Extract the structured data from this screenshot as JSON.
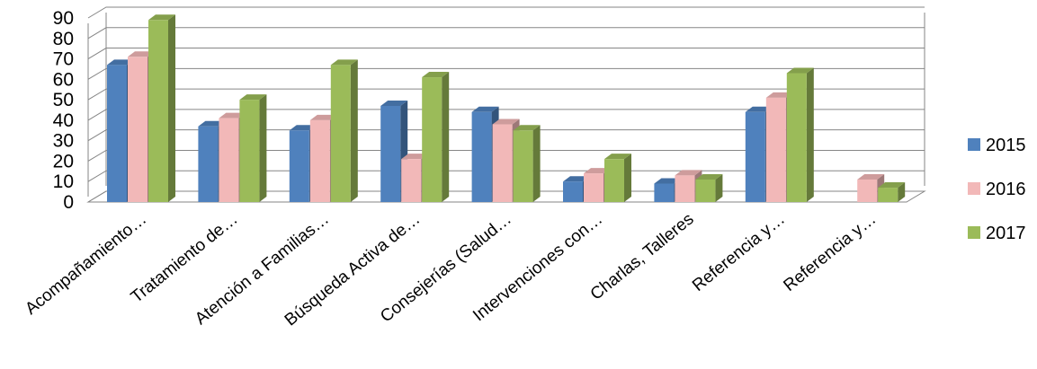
{
  "chart_data": {
    "type": "bar",
    "categories": [
      "Acompañamiento…",
      "Tratamiento de…",
      "Atención a Familias…",
      "Búsqueda Activa de…",
      "Consejerías (Salud…",
      "Intervenciones con…",
      "Charlas, Talleres",
      "Referencia y…",
      "Referencia y…"
    ],
    "series": [
      {
        "name": "2015",
        "values": [
          67,
          37,
          35,
          47,
          44,
          10,
          9,
          44,
          null
        ]
      },
      {
        "name": "2016",
        "values": [
          71,
          41,
          40,
          21,
          38,
          14,
          13,
          51,
          11
        ]
      },
      {
        "name": "2017",
        "values": [
          89,
          50,
          67,
          61,
          35,
          21,
          11,
          63,
          7
        ]
      }
    ],
    "y_ticks": [
      "0",
      "10",
      "20",
      "30",
      "40",
      "50",
      "60",
      "70",
      "80",
      "90"
    ],
    "ylim": [
      0,
      90
    ],
    "grid": true,
    "legend_position": "right",
    "colors": [
      "#4f81bd",
      "#f2b8b8",
      "#9bbb59"
    ],
    "title": "",
    "xlabel": "",
    "ylabel": ""
  }
}
